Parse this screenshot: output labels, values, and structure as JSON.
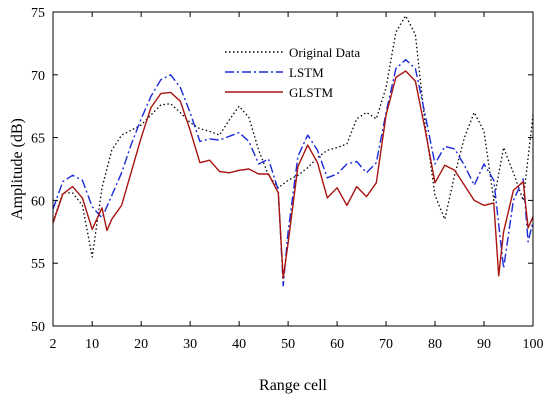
{
  "chart_data": {
    "type": "line",
    "title": "",
    "xlabel": "Range cell",
    "ylabel": "Amplitude (dB)",
    "xlim": [
      2,
      100
    ],
    "ylim": [
      50,
      75
    ],
    "xticks": [
      2,
      10,
      20,
      30,
      40,
      50,
      60,
      70,
      80,
      90,
      100
    ],
    "yticks": [
      50,
      55,
      60,
      65,
      70,
      75
    ],
    "grid": false,
    "legend_position": "top-center",
    "series": [
      {
        "name": "Original Data",
        "color": "#000000",
        "style": "dotted",
        "points": [
          [
            2,
            58.3
          ],
          [
            4,
            60.6
          ],
          [
            6,
            60.6
          ],
          [
            8,
            59.6
          ],
          [
            10,
            55.5
          ],
          [
            12,
            61.0
          ],
          [
            14,
            64.0
          ],
          [
            16,
            65.2
          ],
          [
            18,
            65.6
          ],
          [
            20,
            66.0
          ],
          [
            22,
            66.8
          ],
          [
            24,
            67.6
          ],
          [
            26,
            67.7
          ],
          [
            28,
            67.0
          ],
          [
            30,
            66.2
          ],
          [
            32,
            65.7
          ],
          [
            34,
            65.5
          ],
          [
            36,
            65.2
          ],
          [
            38,
            66.4
          ],
          [
            40,
            67.5
          ],
          [
            42,
            66.6
          ],
          [
            44,
            64.0
          ],
          [
            46,
            62.0
          ],
          [
            48,
            61.0
          ],
          [
            50,
            61.6
          ],
          [
            52,
            62.0
          ],
          [
            54,
            62.6
          ],
          [
            56,
            63.4
          ],
          [
            58,
            64.0
          ],
          [
            60,
            64.2
          ],
          [
            62,
            64.5
          ],
          [
            64,
            66.5
          ],
          [
            66,
            67.0
          ],
          [
            68,
            66.5
          ],
          [
            70,
            69.0
          ],
          [
            72,
            73.4
          ],
          [
            74,
            74.7
          ],
          [
            76,
            73.2
          ],
          [
            78,
            66.0
          ],
          [
            80,
            60.4
          ],
          [
            82,
            58.5
          ],
          [
            84,
            62.0
          ],
          [
            86,
            65.0
          ],
          [
            88,
            67.0
          ],
          [
            90,
            65.5
          ],
          [
            92,
            60.0
          ],
          [
            94,
            64.2
          ],
          [
            96,
            62.2
          ],
          [
            98,
            60.0
          ],
          [
            100,
            66.8
          ]
        ]
      },
      {
        "name": "LSTM",
        "color": "#1a2ad9",
        "style": "dashdot",
        "points": [
          [
            2,
            59.3
          ],
          [
            4,
            61.5
          ],
          [
            6,
            62.0
          ],
          [
            8,
            61.6
          ],
          [
            10,
            59.5
          ],
          [
            12,
            58.6
          ],
          [
            14,
            60.4
          ],
          [
            16,
            62.2
          ],
          [
            18,
            64.5
          ],
          [
            20,
            66.5
          ],
          [
            22,
            68.3
          ],
          [
            24,
            69.6
          ],
          [
            26,
            70.0
          ],
          [
            28,
            69.0
          ],
          [
            30,
            67.0
          ],
          [
            32,
            64.7
          ],
          [
            34,
            64.9
          ],
          [
            36,
            64.8
          ],
          [
            38,
            65.1
          ],
          [
            40,
            65.4
          ],
          [
            42,
            64.7
          ],
          [
            44,
            62.9
          ],
          [
            46,
            63.3
          ],
          [
            48,
            60.8
          ],
          [
            49,
            53.2
          ],
          [
            50,
            57.5
          ],
          [
            52,
            63.5
          ],
          [
            54,
            65.2
          ],
          [
            56,
            64.0
          ],
          [
            58,
            61.8
          ],
          [
            60,
            62.1
          ],
          [
            62,
            62.9
          ],
          [
            64,
            63.1
          ],
          [
            66,
            62.2
          ],
          [
            68,
            63.0
          ],
          [
            70,
            67.0
          ],
          [
            72,
            70.5
          ],
          [
            74,
            71.2
          ],
          [
            76,
            70.5
          ],
          [
            78,
            66.8
          ],
          [
            80,
            62.9
          ],
          [
            82,
            64.3
          ],
          [
            84,
            64.1
          ],
          [
            86,
            62.8
          ],
          [
            88,
            61.2
          ],
          [
            90,
            62.9
          ],
          [
            92,
            61.6
          ],
          [
            94,
            54.6
          ],
          [
            96,
            60.0
          ],
          [
            98,
            61.7
          ],
          [
            99,
            56.7
          ],
          [
            100,
            58.3
          ]
        ]
      },
      {
        "name": "GLSTM",
        "color": "#a8140f",
        "style": "solid",
        "points": [
          [
            2,
            58.2
          ],
          [
            4,
            60.5
          ],
          [
            6,
            61.1
          ],
          [
            8,
            60.2
          ],
          [
            10,
            57.7
          ],
          [
            12,
            59.4
          ],
          [
            13,
            57.6
          ],
          [
            14,
            58.5
          ],
          [
            16,
            59.6
          ],
          [
            18,
            62.3
          ],
          [
            20,
            65.0
          ],
          [
            22,
            67.4
          ],
          [
            24,
            68.5
          ],
          [
            26,
            68.6
          ],
          [
            28,
            67.9
          ],
          [
            30,
            65.6
          ],
          [
            32,
            63.0
          ],
          [
            34,
            63.2
          ],
          [
            36,
            62.3
          ],
          [
            38,
            62.2
          ],
          [
            40,
            62.4
          ],
          [
            42,
            62.5
          ],
          [
            44,
            62.1
          ],
          [
            46,
            62.1
          ],
          [
            48,
            60.6
          ],
          [
            49,
            53.8
          ],
          [
            50,
            56.6
          ],
          [
            52,
            62.7
          ],
          [
            54,
            64.4
          ],
          [
            56,
            63.0
          ],
          [
            58,
            60.2
          ],
          [
            60,
            61.0
          ],
          [
            62,
            59.6
          ],
          [
            64,
            61.1
          ],
          [
            66,
            60.3
          ],
          [
            68,
            61.4
          ],
          [
            70,
            66.8
          ],
          [
            72,
            69.8
          ],
          [
            74,
            70.3
          ],
          [
            76,
            69.5
          ],
          [
            78,
            65.6
          ],
          [
            80,
            61.4
          ],
          [
            82,
            62.8
          ],
          [
            84,
            62.4
          ],
          [
            86,
            61.2
          ],
          [
            88,
            60.0
          ],
          [
            90,
            59.6
          ],
          [
            92,
            59.8
          ],
          [
            93,
            54.0
          ],
          [
            94,
            57.5
          ],
          [
            96,
            60.8
          ],
          [
            98,
            61.5
          ],
          [
            99,
            57.8
          ],
          [
            100,
            58.7
          ]
        ]
      }
    ]
  }
}
